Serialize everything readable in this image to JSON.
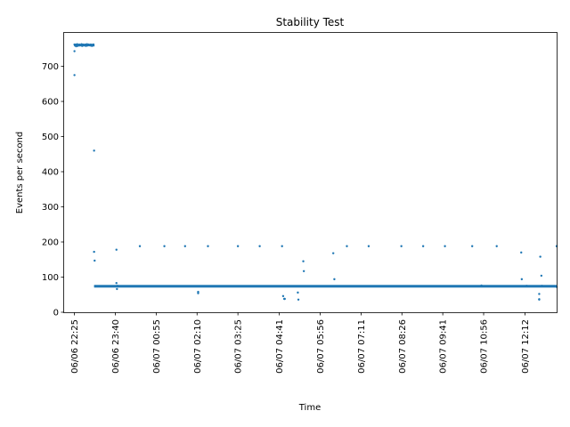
{
  "chart_data": {
    "type": "scatter",
    "title": "Stability Test",
    "xlabel": "Time",
    "ylabel": "Events per second",
    "xlim": [
      "2024-06-06T22:06",
      "2024-06-07T13:10"
    ],
    "ylim": [
      0,
      795
    ],
    "x_ticks": [
      "2024-06-06T22:25",
      "2024-06-06T23:40",
      "2024-06-07T00:55",
      "2024-06-07T02:10",
      "2024-06-07T03:25",
      "2024-06-07T04:41",
      "2024-06-07T05:56",
      "2024-06-07T07:11",
      "2024-06-07T08:26",
      "2024-06-07T09:41",
      "2024-06-07T10:56",
      "2024-06-07T12:12"
    ],
    "x_tick_labels": [
      "06/06 22:25",
      "06/06 23:40",
      "06/07 00:55",
      "06/07 02:10",
      "06/07 03:25",
      "06/07 04:41",
      "06/07 05:56",
      "06/07 07:11",
      "06/07 08:26",
      "06/07 09:41",
      "06/07 10:56",
      "06/07 12:12"
    ],
    "y_ticks": [
      0,
      100,
      200,
      300,
      400,
      500,
      600,
      700
    ],
    "grid": false,
    "marker_color": "#1f77b4",
    "series": [
      {
        "x": [
          "2024-06-06T22:25",
          "2024-06-06T22:25",
          "2024-06-06T22:25",
          "2024-06-06T22:26",
          "2024-06-06T22:27",
          "2024-06-06T22:28",
          "2024-06-06T22:29",
          "2024-06-06T22:30",
          "2024-06-06T22:31",
          "2024-06-06T22:32",
          "2024-06-06T22:33",
          "2024-06-06T22:34",
          "2024-06-06T22:35",
          "2024-06-06T22:36",
          "2024-06-06T22:37",
          "2024-06-06T22:38",
          "2024-06-06T22:39",
          "2024-06-06T22:40",
          "2024-06-06T22:41",
          "2024-06-06T22:42",
          "2024-06-06T22:43",
          "2024-06-06T22:44",
          "2024-06-06T22:45",
          "2024-06-06T22:46",
          "2024-06-06T22:47",
          "2024-06-06T22:48",
          "2024-06-06T22:49",
          "2024-06-06T22:50",
          "2024-06-06T22:51",
          "2024-06-06T22:52",
          "2024-06-06T22:53",
          "2024-06-06T22:54",
          "2024-06-06T22:55",
          "2024-06-06T22:56",
          "2024-06-06T22:57",
          "2024-06-06T22:58",
          "2024-06-06T22:59",
          "2024-06-06T23:00",
          "2024-06-06T23:00",
          "2024-06-06T23:01",
          "2024-06-06T23:01",
          "2024-06-06T23:02",
          "2024-06-06T23:03",
          "2024-06-06T23:42",
          "2024-06-06T23:42",
          "2024-06-06T23:43",
          "2024-06-06T23:44",
          "2024-06-07T00:25",
          "2024-06-07T01:10",
          "2024-06-07T01:48",
          "2024-06-07T02:12",
          "2024-06-07T02:12",
          "2024-06-07T02:30",
          "2024-06-07T03:25",
          "2024-06-07T04:05",
          "2024-06-07T04:46",
          "2024-06-07T04:48",
          "2024-06-07T04:50",
          "2024-06-07T04:51",
          "2024-06-07T05:15",
          "2024-06-07T05:16",
          "2024-06-07T05:25",
          "2024-06-07T05:26",
          "2024-06-07T06:20",
          "2024-06-07T06:22",
          "2024-06-07T06:45",
          "2024-06-07T07:25",
          "2024-06-07T08:25",
          "2024-06-07T09:05",
          "2024-06-07T09:45",
          "2024-06-07T10:35",
          "2024-06-07T10:52",
          "2024-06-07T11:20",
          "2024-06-07T12:05",
          "2024-06-07T12:06",
          "2024-06-07T12:15",
          "2024-06-07T12:38",
          "2024-06-07T12:38",
          "2024-06-07T12:38",
          "2024-06-07T12:40",
          "2024-06-07T12:42",
          "2024-06-07T12:43",
          "2024-06-07T13:10",
          "2024-06-07T13:10"
        ],
        "y": [
          675,
          762,
          743,
          759,
          762,
          757,
          760,
          763,
          758,
          761,
          760,
          762,
          759,
          761,
          760,
          763,
          758,
          760,
          762,
          759,
          761,
          760,
          762,
          758,
          761,
          763,
          759,
          760,
          762,
          760,
          761,
          759,
          762,
          760,
          758,
          761,
          762,
          759,
          762,
          460,
          172,
          147,
          74,
          178,
          83,
          66,
          75,
          188,
          188,
          188,
          58,
          54,
          188,
          188,
          188,
          188,
          46,
          38,
          38,
          56,
          36,
          145,
          117,
          168,
          94,
          188,
          188,
          188,
          188,
          188,
          188,
          76,
          188,
          170,
          94,
          75,
          52,
          37,
          36,
          158,
          104,
          75,
          188,
          72
        ],
        "baseline": {
          "y": 74,
          "x_range": [
            "2024-06-06T23:01",
            "2024-06-07T13:10"
          ]
        }
      }
    ]
  }
}
